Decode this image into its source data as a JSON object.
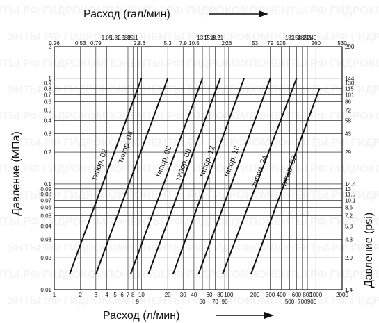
{
  "chart_data": {
    "type": "line",
    "title_top": "Расход (гал/мин)",
    "xlabel": "Расход (л/мин)",
    "ylabel_left": "Давление (МПа)",
    "ylabel_right": "Давление (psi)",
    "x_scale": "log",
    "y_scale": "log",
    "xlim": [
      1,
      2000
    ],
    "ylim": [
      0.01,
      2
    ],
    "grid": true,
    "x_ticks": [
      "1",
      "2",
      "3",
      "4",
      "5",
      "6",
      "7",
      "8",
      "9",
      "10",
      "20",
      "30",
      "40",
      "50",
      "60",
      "70",
      "80",
      "90",
      "100",
      "200",
      "300",
      "400",
      "500",
      "600",
      "700",
      "800",
      "900",
      "1000",
      "2000"
    ],
    "x_ticks_top": [
      "0.26",
      "0.53",
      "0.79",
      "1.05",
      "1.32",
      "1.58",
      "1.85",
      "2.11",
      "2.4",
      "2.6",
      "5.3",
      "7.9",
      "10.5",
      "13.2",
      "15.8",
      "18.5",
      "21",
      "24",
      "26",
      "53",
      "79",
      "105",
      "132",
      "158",
      "185",
      "211",
      "240",
      "260",
      "530"
    ],
    "y_ticks": [
      "0.01",
      "0.02",
      "0.03",
      "0.04",
      "0.05",
      "0.06",
      "0.07",
      "0.08",
      "0.09",
      "0.1",
      "0.2",
      "0.3",
      "0.4",
      "0.5",
      "0.6",
      "0.7",
      "0.8",
      "0.9",
      "1",
      "2"
    ],
    "y_ticks_right": [
      "1.4",
      "2.9",
      "4.3",
      "5.8",
      "7.2",
      "8.6",
      "10.1",
      "11.5",
      "13",
      "14.4",
      "29",
      "43",
      "58",
      "72",
      "86",
      "101",
      "115",
      "130",
      "144",
      "290"
    ],
    "series": [
      {
        "name": "типор. 02",
        "x": [
          1.5,
          10
        ],
        "y": [
          0.014,
          1.0
        ]
      },
      {
        "name": "типор. 04",
        "x": [
          3,
          20
        ],
        "y": [
          0.014,
          1.0
        ]
      },
      {
        "name": "типор. 06",
        "x": [
          7.5,
          50
        ],
        "y": [
          0.014,
          1.0
        ]
      },
      {
        "name": "типор. 08",
        "x": [
          12,
          80
        ],
        "y": [
          0.014,
          1.0
        ]
      },
      {
        "name": "типор. 12",
        "x": [
          23,
          150
        ],
        "y": [
          0.014,
          1.0
        ]
      },
      {
        "name": "типор. 16",
        "x": [
          45,
          300
        ],
        "y": [
          0.014,
          1.0
        ]
      },
      {
        "name": "типор. 24",
        "x": [
          85,
          600
        ],
        "y": [
          0.014,
          1.0
        ]
      },
      {
        "name": "типор. 32",
        "x": [
          180,
          1100
        ],
        "y": [
          0.014,
          0.8
        ]
      }
    ],
    "label_positions": [
      {
        "x": 3.5,
        "y": 0.15
      },
      {
        "x": 7.0,
        "y": 0.22
      },
      {
        "x": 19,
        "y": 0.16
      },
      {
        "x": 32,
        "y": 0.15
      },
      {
        "x": 60,
        "y": 0.16
      },
      {
        "x": 115,
        "y": 0.16
      },
      {
        "x": 240,
        "y": 0.13
      },
      {
        "x": 520,
        "y": 0.13
      }
    ],
    "watermark": "ЭНТЫ.РФ ГИДРОКОМПОНЕНТЫ.РФ ГИДРОКОМПОНЕНТЫ.РФ ГИДРОКОМПОНЕНТЫ.РФ"
  }
}
